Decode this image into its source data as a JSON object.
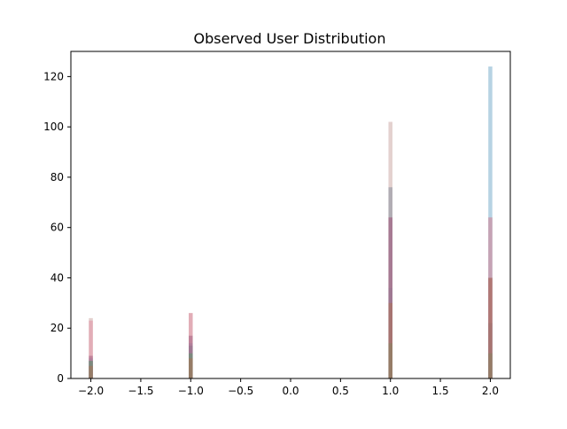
{
  "chart_data": {
    "type": "bar",
    "title": "Observed User Distribution",
    "xlabel": "",
    "ylabel": "",
    "xlim": [
      -2.2,
      2.2
    ],
    "ylim": [
      0,
      130
    ],
    "x_ticks": [
      -2.0,
      -1.5,
      -1.0,
      -0.5,
      0.0,
      0.5,
      1.0,
      1.5,
      2.0
    ],
    "x_tick_labels": [
      "−2.0",
      "−1.5",
      "−1.0",
      "−0.5",
      "0.0",
      "0.5",
      "1.0",
      "1.5",
      "2.0"
    ],
    "y_ticks": [
      0,
      20,
      40,
      60,
      80,
      100,
      120
    ],
    "y_tick_labels": [
      "0",
      "20",
      "40",
      "60",
      "80",
      "100",
      "120"
    ],
    "grid": false,
    "legend": "none",
    "bar_width": 0.04,
    "opacity": 0.5,
    "categories": [
      -2,
      -1,
      1,
      2
    ],
    "series": [
      {
        "color": "#c9a3a0",
        "values": [
          24,
          26,
          102,
          64
        ]
      },
      {
        "color": "#6fa8c8",
        "values": [
          8,
          14,
          36,
          124
        ]
      },
      {
        "color": "#e08aa0",
        "values": [
          23,
          26,
          64,
          64
        ]
      },
      {
        "color": "#7d8a9a",
        "values": [
          7,
          13,
          76,
          22
        ]
      },
      {
        "color": "#9e5a7e",
        "values": [
          9,
          17,
          64,
          40
        ]
      },
      {
        "color": "#5a9a6a",
        "values": [
          7,
          10,
          14,
          10
        ]
      },
      {
        "color": "#b07050",
        "values": [
          5,
          8,
          30,
          40
        ]
      }
    ]
  }
}
